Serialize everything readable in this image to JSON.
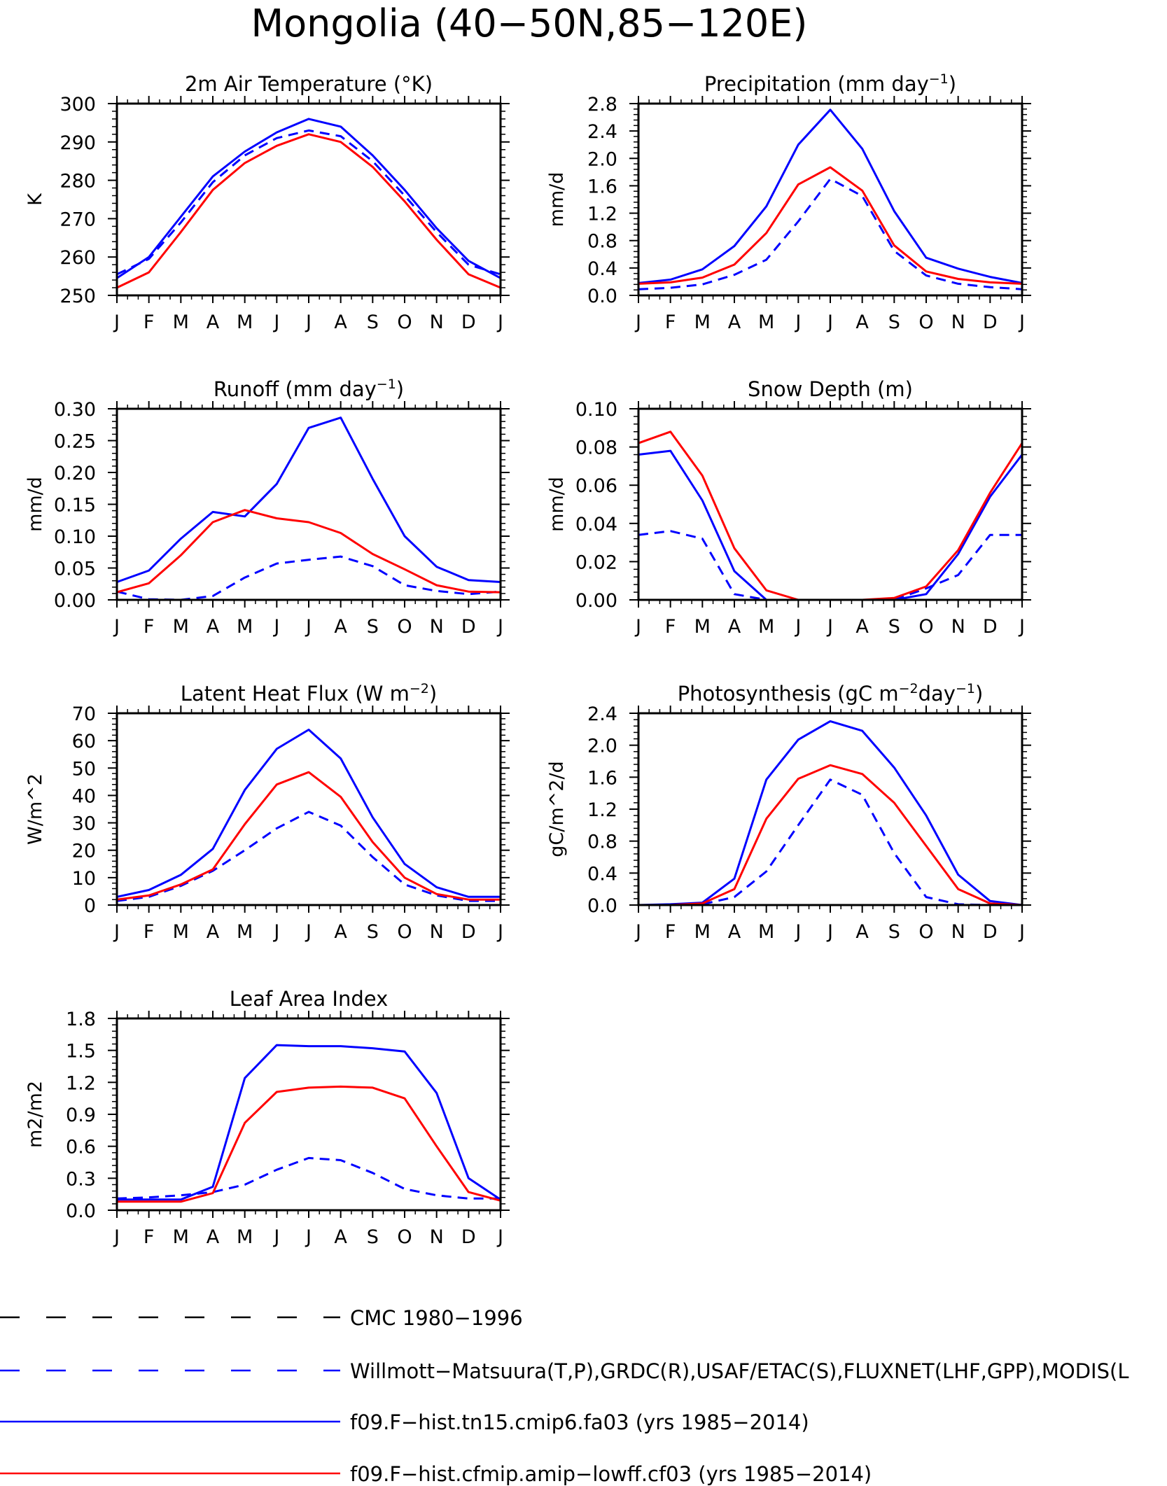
{
  "figure": {
    "title": "Mongolia (40−50N,85−120E)"
  },
  "month_labels": [
    "J",
    "F",
    "M",
    "A",
    "M",
    "J",
    "J",
    "A",
    "S",
    "O",
    "N",
    "D",
    "J"
  ],
  "series_styles": {
    "obs_alt": {
      "color": "#000000",
      "dash": true
    },
    "obs": {
      "color": "#0000ff",
      "dash": true
    },
    "model_a": {
      "color": "#0000ff",
      "dash": false
    },
    "model_b": {
      "color": "#ff0000",
      "dash": false
    }
  },
  "legend": {
    "entries": [
      {
        "key": "obs_alt",
        "label": "CMC 1980−1996"
      },
      {
        "key": "obs",
        "label": "Willmott−Matsuura(T,P),GRDC(R),USAF/ETAC(S),FLUXNET(LHF,GPP),MODIS(L"
      },
      {
        "key": "model_a",
        "label": "f09.F−hist.tn15.cmip6.fa03 (yrs 1985−2014)"
      },
      {
        "key": "model_b",
        "label": "f09.F−hist.cfmip.amip−lowff.cf03 (yrs 1985−2014)"
      }
    ]
  },
  "chart_data": [
    {
      "type": "line",
      "title": "2m Air Temperature (°K)",
      "ylabel": "K",
      "ylim": [
        250,
        300
      ],
      "yticks": [
        250,
        260,
        270,
        280,
        290,
        300
      ],
      "ytick_labels": [
        "250",
        "260",
        "270",
        "280",
        "290",
        "300"
      ],
      "series": [
        {
          "key": "obs",
          "values": [
            255.5,
            259.5,
            269.0,
            279.5,
            286.5,
            291.0,
            293.0,
            291.5,
            285.0,
            276.0,
            266.5,
            258.0,
            255.5
          ]
        },
        {
          "key": "model_a",
          "values": [
            254.5,
            260.0,
            270.5,
            281.0,
            287.5,
            292.5,
            296.0,
            294.0,
            286.5,
            277.5,
            267.5,
            259.0,
            254.5
          ]
        },
        {
          "key": "model_b",
          "values": [
            252.0,
            256.0,
            266.5,
            277.5,
            284.5,
            289.0,
            292.0,
            290.0,
            283.5,
            274.5,
            264.5,
            255.5,
            252.0
          ]
        }
      ]
    },
    {
      "type": "line",
      "title": "Precipitation (mm day",
      "title_sup": "−1",
      "title_end": ")",
      "ylabel": "mm/d",
      "ylim": [
        0,
        2.8
      ],
      "yticks": [
        0,
        0.4,
        0.8,
        1.2,
        1.6,
        2.0,
        2.4,
        2.8
      ],
      "ytick_labels": [
        "0.0",
        "0.4",
        "0.8",
        "1.2",
        "1.6",
        "2.0",
        "2.4",
        "2.8"
      ],
      "series": [
        {
          "key": "obs",
          "values": [
            0.09,
            0.11,
            0.16,
            0.3,
            0.52,
            1.08,
            1.7,
            1.45,
            0.65,
            0.29,
            0.17,
            0.12,
            0.09
          ]
        },
        {
          "key": "model_a",
          "values": [
            0.18,
            0.23,
            0.38,
            0.72,
            1.3,
            2.2,
            2.71,
            2.14,
            1.23,
            0.55,
            0.39,
            0.27,
            0.18
          ]
        },
        {
          "key": "model_b",
          "values": [
            0.17,
            0.19,
            0.26,
            0.45,
            0.91,
            1.62,
            1.87,
            1.53,
            0.73,
            0.35,
            0.24,
            0.19,
            0.17
          ]
        }
      ]
    },
    {
      "type": "line",
      "title": "Runoff (mm day",
      "title_sup": "−1",
      "title_end": ")",
      "ylabel": "mm/d",
      "ylim": [
        0,
        0.3
      ],
      "yticks": [
        0,
        0.05,
        0.1,
        0.15,
        0.2,
        0.25,
        0.3
      ],
      "ytick_labels": [
        "0.00",
        "0.05",
        "0.10",
        "0.15",
        "0.20",
        "0.25",
        "0.30"
      ],
      "series": [
        {
          "key": "obs",
          "values": [
            0.013,
            0.001,
            0.0,
            0.006,
            0.035,
            0.057,
            0.063,
            0.068,
            0.053,
            0.023,
            0.014,
            0.009,
            0.013
          ]
        },
        {
          "key": "model_a",
          "values": [
            0.028,
            0.046,
            0.096,
            0.138,
            0.131,
            0.182,
            0.27,
            0.286,
            0.19,
            0.1,
            0.052,
            0.031,
            0.028
          ]
        },
        {
          "key": "model_b",
          "values": [
            0.012,
            0.026,
            0.07,
            0.122,
            0.141,
            0.128,
            0.122,
            0.105,
            0.072,
            0.048,
            0.023,
            0.013,
            0.012
          ]
        }
      ]
    },
    {
      "type": "line",
      "title": "Snow Depth (m)",
      "ylabel": "mm/d",
      "ylim": [
        0,
        0.1
      ],
      "yticks": [
        0,
        0.02,
        0.04,
        0.06,
        0.08,
        0.1
      ],
      "ytick_labels": [
        "0.00",
        "0.02",
        "0.04",
        "0.06",
        "0.08",
        "0.10"
      ],
      "series": [
        {
          "key": "obs_alt",
          "values": [
            0,
            0,
            0,
            0,
            0,
            0,
            0,
            0,
            0,
            0,
            0,
            0,
            0
          ]
        },
        {
          "key": "obs",
          "values": [
            0.034,
            0.036,
            0.032,
            0.003,
            0.0,
            0.0,
            0.0,
            0.0,
            0.0,
            0.006,
            0.013,
            0.034,
            0.034
          ]
        },
        {
          "key": "model_a",
          "values": [
            0.076,
            0.078,
            0.052,
            0.015,
            0.0,
            0.0,
            0.0,
            0.0,
            0.0,
            0.003,
            0.024,
            0.054,
            0.076
          ]
        },
        {
          "key": "model_b",
          "values": [
            0.082,
            0.088,
            0.065,
            0.027,
            0.005,
            0.0,
            0.0,
            0.0,
            0.001,
            0.007,
            0.026,
            0.056,
            0.082
          ]
        }
      ]
    },
    {
      "type": "line",
      "title": "Latent Heat Flux (W m",
      "title_sup": "−2",
      "title_end": ")",
      "ylabel": "W/m^2",
      "ylim": [
        0,
        70
      ],
      "yticks": [
        0,
        10,
        20,
        30,
        40,
        50,
        60,
        70
      ],
      "ytick_labels": [
        "0",
        "10",
        "20",
        "30",
        "40",
        "50",
        "60",
        "70"
      ],
      "series": [
        {
          "key": "obs",
          "values": [
            1.5,
            3.0,
            7.0,
            12.5,
            20.0,
            28.0,
            34.0,
            29.0,
            17.5,
            7.5,
            3.5,
            1.5,
            1.5
          ]
        },
        {
          "key": "model_a",
          "values": [
            3.0,
            5.5,
            11.0,
            20.5,
            42.0,
            57.0,
            64.0,
            53.5,
            32.0,
            15.0,
            6.5,
            3.0,
            3.0
          ]
        },
        {
          "key": "model_b",
          "values": [
            2.0,
            3.5,
            7.5,
            13.0,
            29.5,
            44.0,
            48.5,
            39.5,
            23.0,
            10.0,
            4.0,
            2.0,
            2.0
          ]
        }
      ]
    },
    {
      "type": "line",
      "title": "Photosynthesis (gC m",
      "title_sup": "−2",
      "title_end": "day",
      "title_sup2": "−1",
      "title_end2": ")",
      "ylabel": "gC/m^2/d",
      "ylim": [
        0,
        2.4
      ],
      "yticks": [
        0,
        0.4,
        0.8,
        1.2,
        1.6,
        2.0,
        2.4
      ],
      "ytick_labels": [
        "0.0",
        "0.4",
        "0.8",
        "1.2",
        "1.6",
        "2.0",
        "2.4"
      ],
      "series": [
        {
          "key": "obs",
          "values": [
            0.0,
            0.0,
            0.01,
            0.1,
            0.42,
            1.0,
            1.57,
            1.38,
            0.65,
            0.1,
            0.01,
            0.0,
            0.0
          ]
        },
        {
          "key": "model_a",
          "values": [
            0.0,
            0.01,
            0.03,
            0.33,
            1.57,
            2.07,
            2.3,
            2.18,
            1.72,
            1.12,
            0.38,
            0.05,
            0.0
          ]
        },
        {
          "key": "model_b",
          "values": [
            0.0,
            0.0,
            0.02,
            0.2,
            1.08,
            1.58,
            1.75,
            1.64,
            1.28,
            0.74,
            0.2,
            0.02,
            0.0
          ]
        }
      ]
    },
    {
      "type": "line",
      "title": "Leaf Area Index",
      "ylabel": "m2/m2",
      "ylim": [
        0,
        1.8
      ],
      "yticks": [
        0,
        0.3,
        0.6,
        0.9,
        1.2,
        1.5,
        1.8
      ],
      "ytick_labels": [
        "0.0",
        "0.3",
        "0.6",
        "0.9",
        "1.2",
        "1.5",
        "1.8"
      ],
      "series": [
        {
          "key": "obs",
          "values": [
            0.11,
            0.12,
            0.14,
            0.17,
            0.24,
            0.38,
            0.49,
            0.47,
            0.35,
            0.2,
            0.14,
            0.11,
            0.11
          ]
        },
        {
          "key": "model_a",
          "values": [
            0.1,
            0.1,
            0.1,
            0.22,
            1.24,
            1.55,
            1.54,
            1.54,
            1.52,
            1.49,
            1.1,
            0.3,
            0.1
          ]
        },
        {
          "key": "model_b",
          "values": [
            0.08,
            0.08,
            0.08,
            0.16,
            0.82,
            1.11,
            1.15,
            1.16,
            1.15,
            1.05,
            0.6,
            0.17,
            0.09
          ]
        }
      ]
    }
  ]
}
